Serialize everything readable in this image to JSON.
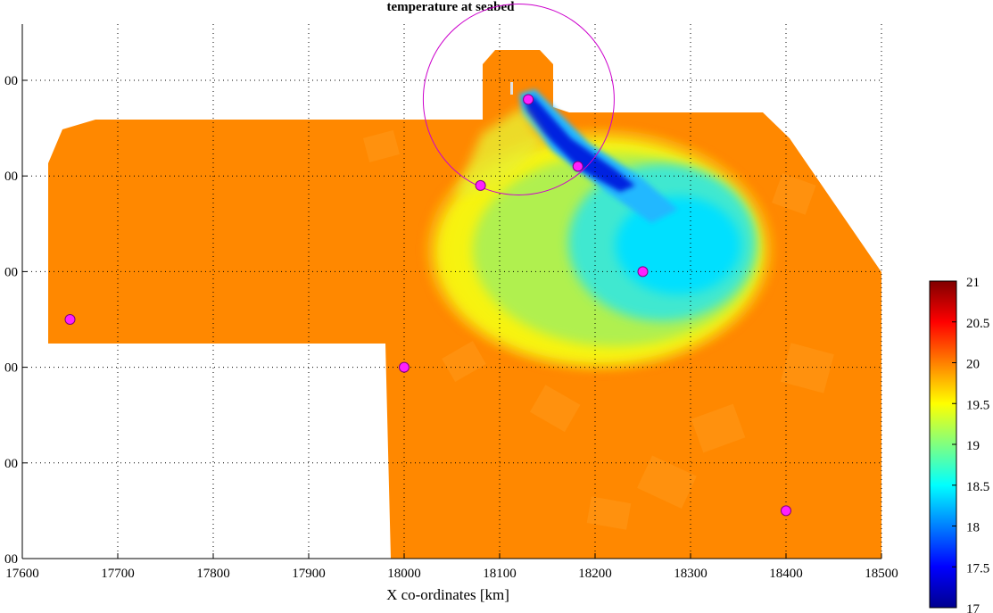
{
  "chart_data": {
    "type": "heatmap",
    "title": "temperature at seabed",
    "xlabel": "X co-ordinates [km]",
    "ylabel": "",
    "xlim": [
      17600,
      18500
    ],
    "ylim": [
      0,
      6
    ],
    "x_ticks": [
      "17600",
      "17700",
      "17800",
      "17900",
      "18000",
      "18100",
      "18200",
      "18300",
      "18400",
      "18500"
    ],
    "y_ticks": [
      "00",
      "00",
      "00",
      "00",
      "00",
      "00"
    ],
    "grid": true,
    "background_value": 20,
    "plume_center": [
      18250,
      3
    ],
    "markers": [
      {
        "x": 18130,
        "y": 4.8
      },
      {
        "x": 18182,
        "y": 4.1
      },
      {
        "x": 18080,
        "y": 3.9
      },
      {
        "x": 18250,
        "y": 3.0
      },
      {
        "x": 17650,
        "y": 2.5
      },
      {
        "x": 18000,
        "y": 2.0
      },
      {
        "x": 18400,
        "y": 0.5
      }
    ],
    "circle": {
      "cx": 18120,
      "cy": 4.8,
      "r": 100
    },
    "colorbar": {
      "min": 17,
      "max": 21,
      "ticks": [
        "17",
        "17.5",
        "18",
        "18.5",
        "19",
        "19.5",
        "20",
        "20.5",
        "21"
      ],
      "colormap": "jet"
    }
  }
}
